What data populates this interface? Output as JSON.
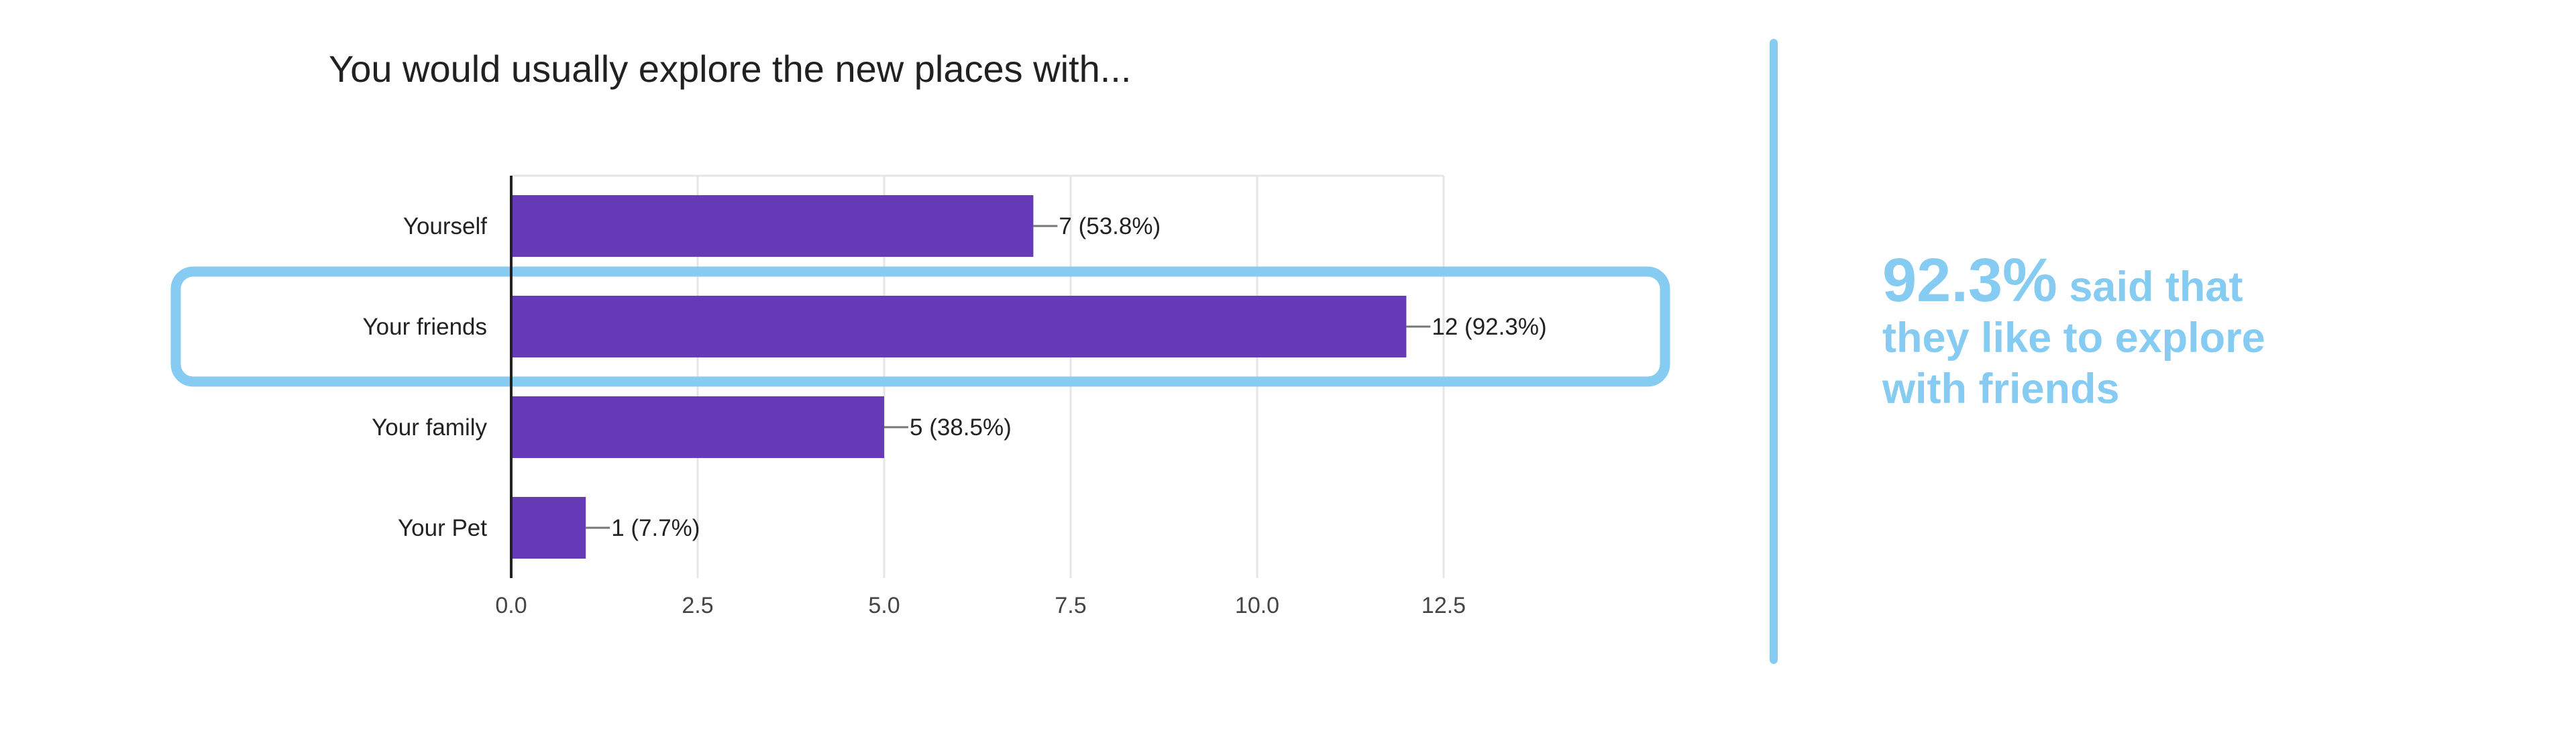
{
  "chart_data": {
    "type": "bar",
    "orientation": "horizontal",
    "title": "You would usually explore the new places with...",
    "categories": [
      "Yourself",
      "Your friends",
      "Your family",
      "Your Pet"
    ],
    "values": [
      7,
      12,
      5,
      1
    ],
    "data_labels": [
      "7 (53.8%)",
      "12 (92.3%)",
      "5 (38.5%)",
      "1 (7.7%)"
    ],
    "xlim": [
      0,
      12.5
    ],
    "xticks": [
      "0.0",
      "2.5",
      "5.0",
      "7.5",
      "10.0",
      "12.5"
    ],
    "grid": true,
    "bar_color": "#673ab7",
    "highlighted_category": "Your friends",
    "highlight_color": "#86cbf2"
  },
  "callout": {
    "percent": "92.3%",
    "line1_rest": "said that",
    "line2": "they like to explore",
    "line3": "with friends",
    "color": "#86cbf2"
  }
}
